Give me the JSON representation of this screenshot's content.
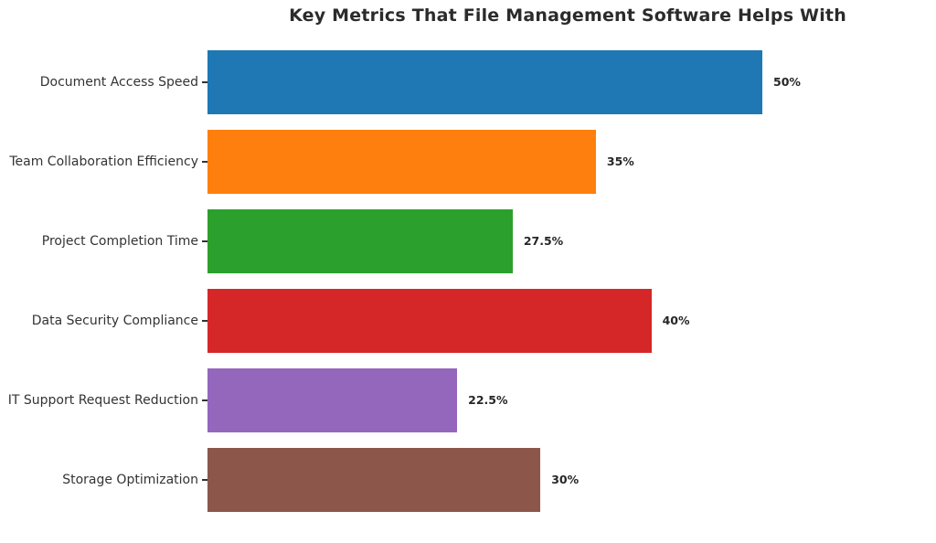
{
  "chart_data": {
    "type": "bar",
    "orientation": "horizontal",
    "title": "Key Metrics That File Management Software Helps With",
    "categories": [
      "Document Access Speed",
      "Team Collaboration Efficiency",
      "Project Completion Time",
      "Data Security Compliance",
      "IT Support Request Reduction",
      "Storage Optimization"
    ],
    "values": [
      50,
      35,
      27.5,
      40,
      22.5,
      30
    ],
    "value_labels": [
      "50%",
      "35%",
      "27.5%",
      "40%",
      "22.5%",
      "30%"
    ],
    "unit": "%",
    "bar_colors": [
      "#1f77b4",
      "#ff7f0e",
      "#2ca02c",
      "#d62728",
      "#9467bd",
      "#8c564b"
    ],
    "xlabel": "",
    "ylabel": "",
    "xlim": [
      0,
      65
    ],
    "grid": false,
    "legend": null,
    "background_color": "#ffffff",
    "title_color": "#2b2b2b",
    "label_color": "#333333",
    "value_label_color": "#262626"
  }
}
